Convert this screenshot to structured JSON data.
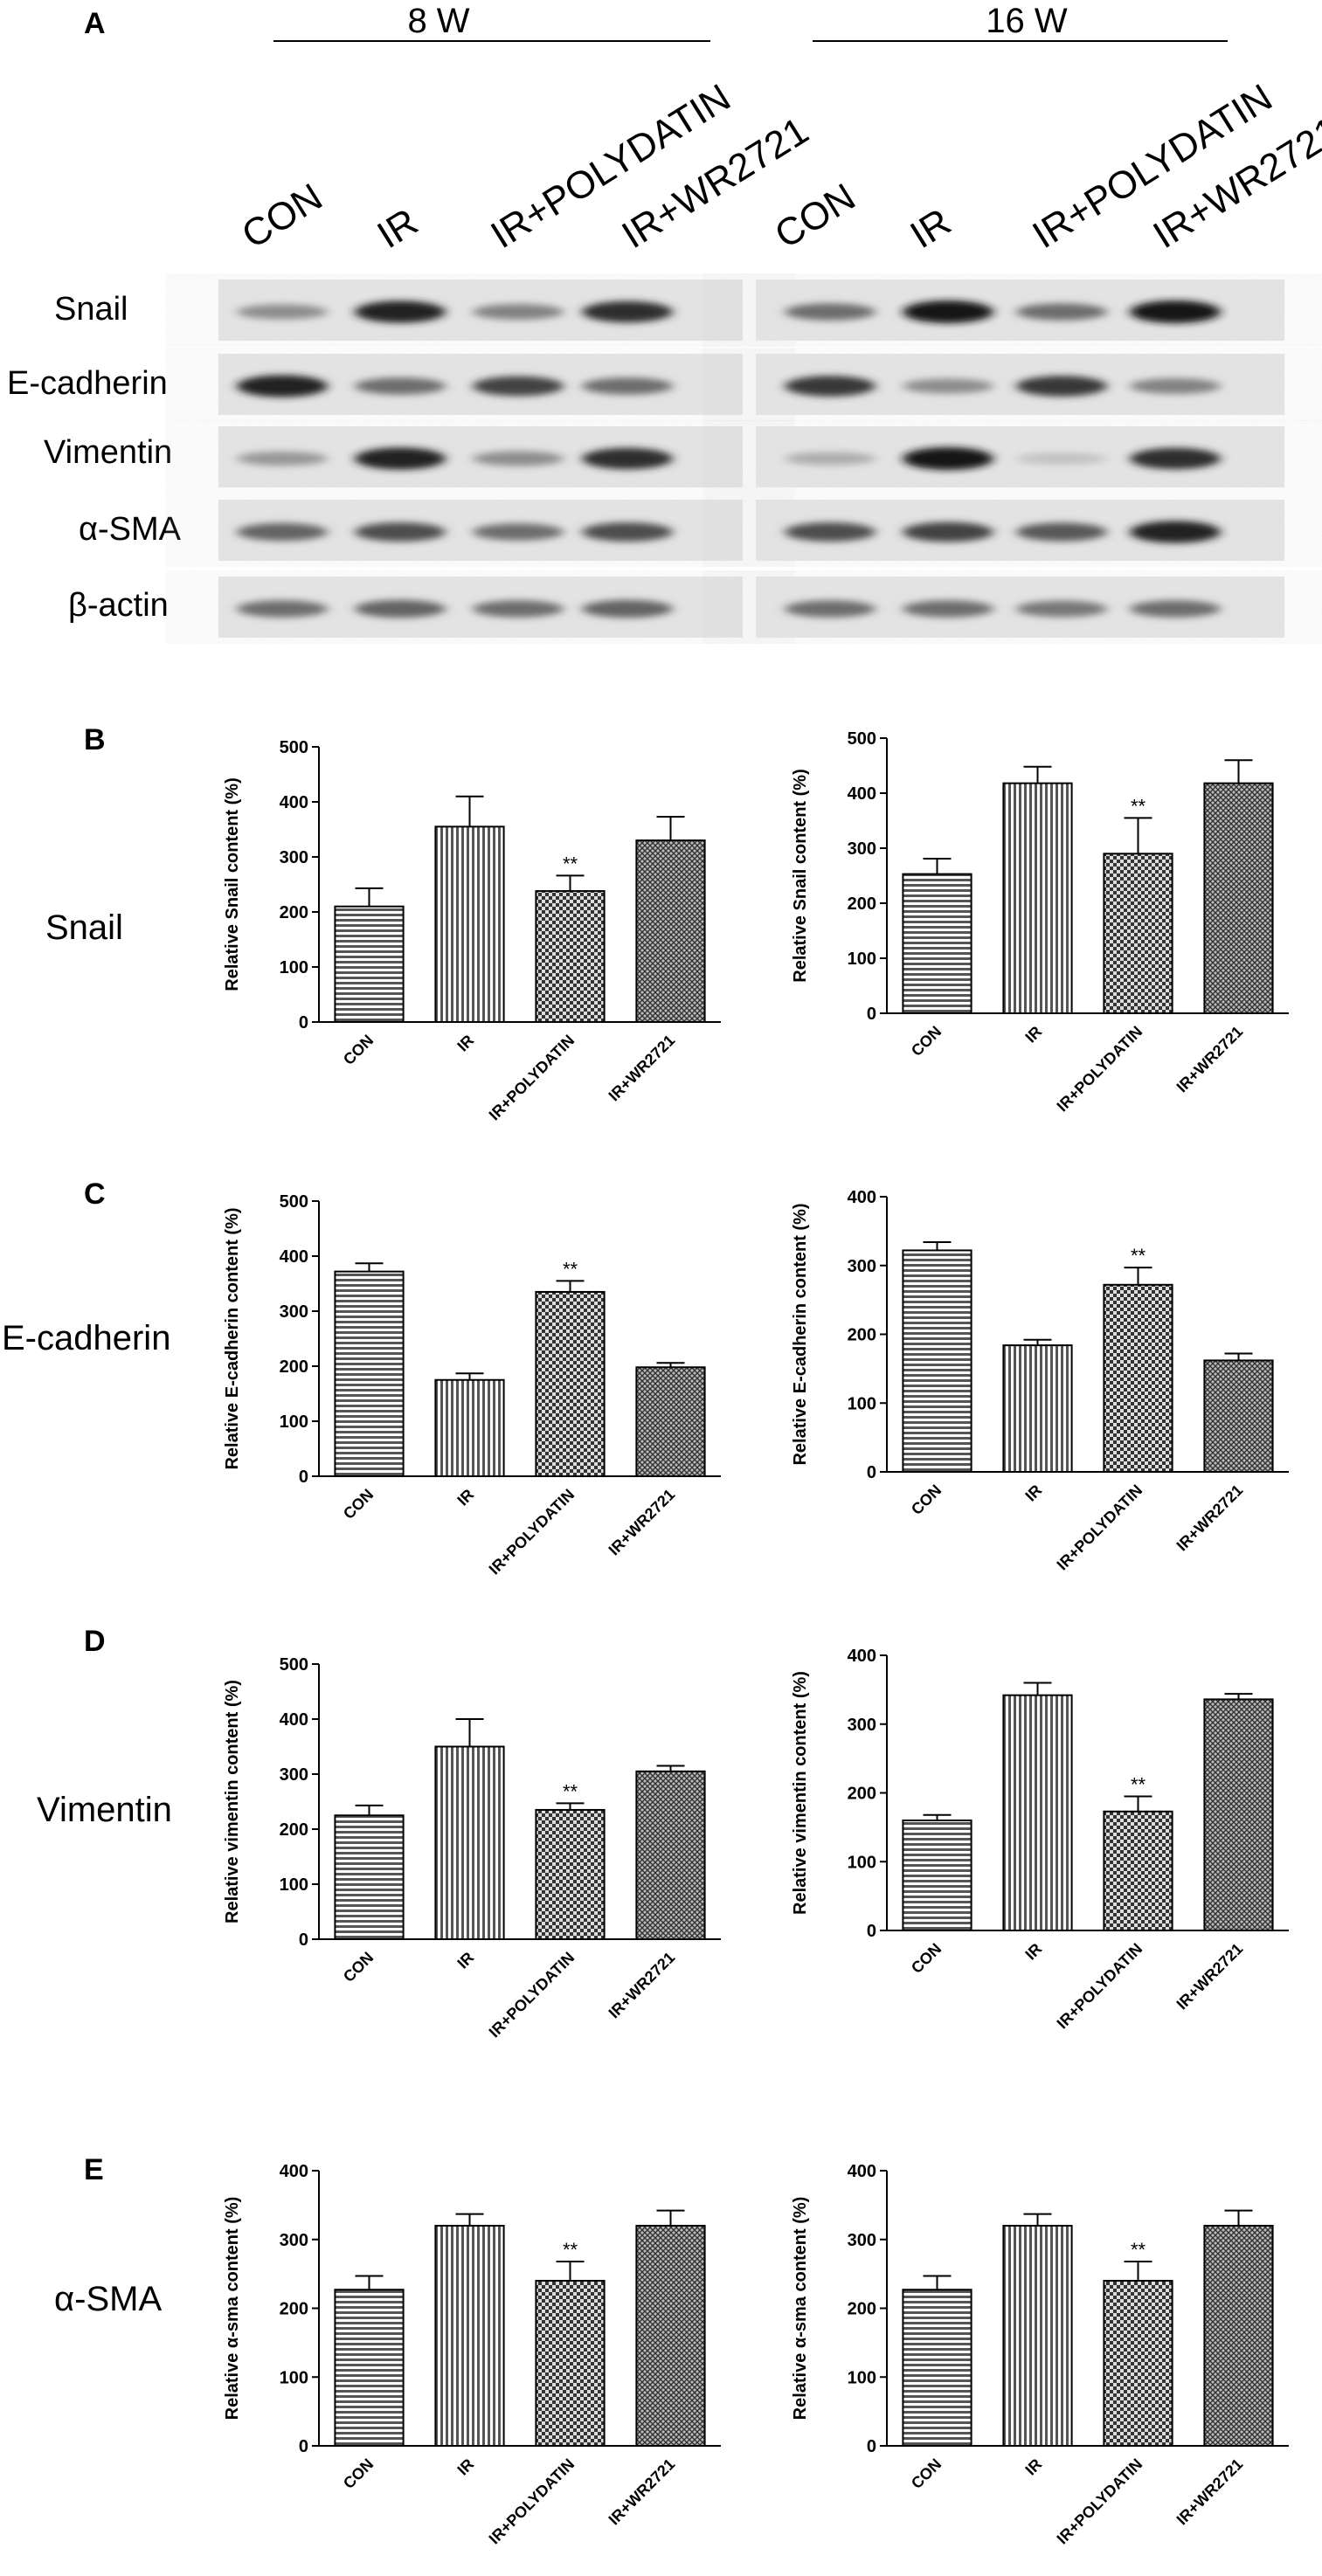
{
  "panel_A": {
    "letter": "A",
    "time_groups": [
      "8 W",
      "16 W"
    ],
    "lane_labels": [
      "CON",
      "IR",
      "IR+POLYDATIN",
      "IR+WR2721"
    ],
    "proteins": [
      "Snail",
      "E-cadherin",
      "Vimentin",
      "α-SMA",
      "β-actin"
    ],
    "band_intensity": {
      "8 W": {
        "Snail": [
          0.45,
          0.95,
          0.5,
          0.9
        ],
        "E-cadherin": [
          0.95,
          0.6,
          0.8,
          0.6
        ],
        "Vimentin": [
          0.4,
          0.95,
          0.45,
          0.9
        ],
        "α-SMA": [
          0.65,
          0.75,
          0.6,
          0.75
        ],
        "β-actin": [
          0.6,
          0.65,
          0.6,
          0.65
        ]
      },
      "16 W": {
        "Snail": [
          0.6,
          1.0,
          0.6,
          1.0
        ],
        "E-cadherin": [
          0.85,
          0.45,
          0.85,
          0.5
        ],
        "Vimentin": [
          0.3,
          1.0,
          0.2,
          0.9
        ],
        "α-SMA": [
          0.75,
          0.8,
          0.7,
          0.95
        ],
        "β-actin": [
          0.6,
          0.6,
          0.55,
          0.6
        ]
      }
    }
  },
  "section_labels": {
    "B": "Snail",
    "C": "E-cadherin",
    "D": "Vimentin",
    "E": "α-SMA"
  },
  "panel_letters": [
    "B",
    "C",
    "D",
    "E"
  ],
  "chart_data": [
    {
      "type": "bar",
      "panel": "B",
      "timepoint": "8 W",
      "categories": [
        "CON",
        "IR",
        "IR+POLYDATIN",
        "IR+WR2721"
      ],
      "values": [
        210,
        355,
        238,
        330
      ],
      "errors": [
        33,
        55,
        28,
        43
      ],
      "significance": [
        "",
        "",
        "**",
        ""
      ],
      "ylabel": "Relative Snail content (%)",
      "ylim": [
        0,
        500
      ],
      "yticks": [
        0,
        100,
        200,
        300,
        400,
        500
      ]
    },
    {
      "type": "bar",
      "panel": "B",
      "timepoint": "16 W",
      "categories": [
        "CON",
        "IR",
        "IR+POLYDATIN",
        "IR+WR2721"
      ],
      "values": [
        253,
        418,
        290,
        418
      ],
      "errors": [
        28,
        30,
        65,
        42
      ],
      "significance": [
        "",
        "",
        "**",
        ""
      ],
      "ylabel": "Relative Snail content (%)",
      "ylim": [
        0,
        500
      ],
      "yticks": [
        0,
        100,
        200,
        300,
        400,
        500
      ]
    },
    {
      "type": "bar",
      "panel": "C",
      "timepoint": "8 W",
      "categories": [
        "CON",
        "IR",
        "IR+POLYDATIN",
        "IR+WR2721"
      ],
      "values": [
        372,
        175,
        335,
        198
      ],
      "errors": [
        15,
        12,
        20,
        8
      ],
      "significance": [
        "",
        "",
        "**",
        ""
      ],
      "ylabel": "Relative E-cadherin content (%)",
      "ylim": [
        0,
        500
      ],
      "yticks": [
        0,
        100,
        200,
        300,
        400,
        500
      ]
    },
    {
      "type": "bar",
      "panel": "C",
      "timepoint": "16 W",
      "categories": [
        "CON",
        "IR",
        "IR+POLYDATIN",
        "IR+WR2721"
      ],
      "values": [
        322,
        184,
        272,
        162
      ],
      "errors": [
        12,
        8,
        25,
        10
      ],
      "significance": [
        "",
        "",
        "**",
        ""
      ],
      "ylabel": "Relative E-cadherin content (%)",
      "ylim": [
        0,
        400
      ],
      "yticks": [
        0,
        100,
        200,
        300,
        400
      ]
    },
    {
      "type": "bar",
      "panel": "D",
      "timepoint": "8 W",
      "categories": [
        "CON",
        "IR",
        "IR+POLYDATIN",
        "IR+WR2721"
      ],
      "values": [
        225,
        350,
        235,
        305
      ],
      "errors": [
        18,
        50,
        12,
        10
      ],
      "significance": [
        "",
        "",
        "**",
        ""
      ],
      "ylabel": "Relative vimentin content (%)",
      "ylim": [
        0,
        500
      ],
      "yticks": [
        0,
        100,
        200,
        300,
        400,
        500
      ]
    },
    {
      "type": "bar",
      "panel": "D",
      "timepoint": "16 W",
      "categories": [
        "CON",
        "IR",
        "IR+POLYDATIN",
        "IR+WR2721"
      ],
      "values": [
        160,
        342,
        173,
        336
      ],
      "errors": [
        8,
        18,
        22,
        8
      ],
      "significance": [
        "",
        "",
        "**",
        ""
      ],
      "ylabel": "Relative vimentin content (%)",
      "ylim": [
        0,
        400
      ],
      "yticks": [
        0,
        100,
        200,
        300,
        400
      ]
    },
    {
      "type": "bar",
      "panel": "E",
      "timepoint": "8 W",
      "categories": [
        "CON",
        "IR",
        "IR+POLYDATIN",
        "IR+WR2721"
      ],
      "values": [
        227,
        320,
        240,
        320
      ],
      "errors": [
        20,
        17,
        28,
        22
      ],
      "significance": [
        "",
        "",
        "**",
        ""
      ],
      "ylabel": "Relative α-sma content (%)",
      "ylim": [
        0,
        400
      ],
      "yticks": [
        0,
        100,
        200,
        300,
        400
      ]
    },
    {
      "type": "bar",
      "panel": "E",
      "timepoint": "16 W",
      "categories": [
        "CON",
        "IR",
        "IR+POLYDATIN",
        "IR+WR2721"
      ],
      "values": [
        227,
        320,
        240,
        320
      ],
      "errors": [
        20,
        17,
        28,
        22
      ],
      "significance": [
        "",
        "",
        "**",
        ""
      ],
      "ylabel": "Relative α-sma content (%)",
      "ylim": [
        0,
        400
      ],
      "yticks": [
        0,
        100,
        200,
        300,
        400
      ]
    }
  ]
}
